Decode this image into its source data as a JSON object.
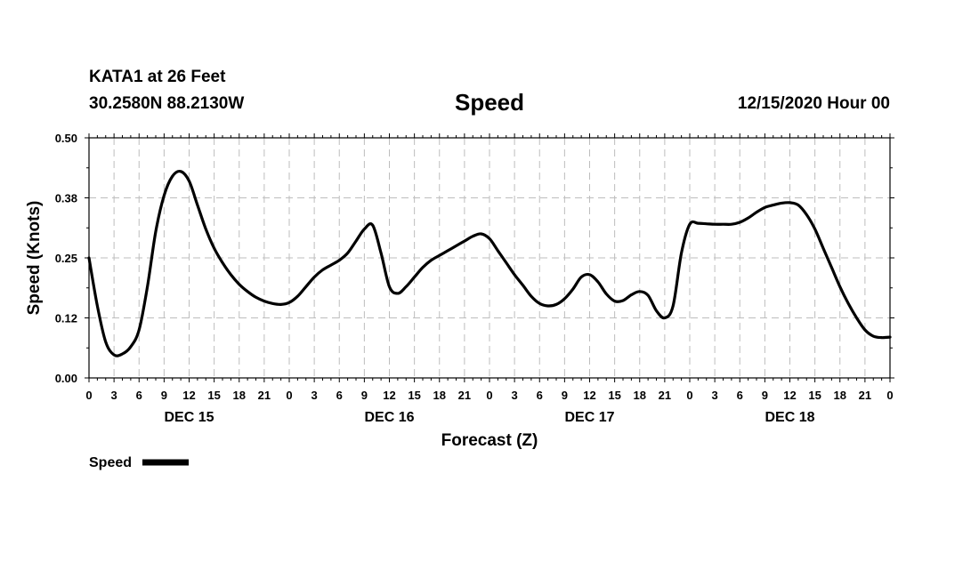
{
  "header": {
    "station": "KATA1 at 26 Feet",
    "coords": "30.2580N 88.2130W",
    "title": "Speed",
    "run_time": "12/15/2020 Hour 00"
  },
  "chart_data": {
    "type": "line",
    "title": "Speed",
    "xlabel": "Forecast (Z)",
    "ylabel": "Speed (Knots)",
    "ylim": [
      0,
      0.5
    ],
    "yticks": [
      "0.00",
      "0.12",
      "0.25",
      "0.38",
      "0.50"
    ],
    "xlim_hours": [
      0,
      96
    ],
    "xtick_labels": [
      "0",
      "3",
      "6",
      "9",
      "12",
      "15",
      "18",
      "21",
      "0",
      "3",
      "6",
      "9",
      "12",
      "15",
      "18",
      "21",
      "0",
      "3",
      "6",
      "9",
      "12",
      "15",
      "18",
      "21",
      "0",
      "3",
      "6",
      "9",
      "12",
      "15",
      "18",
      "21",
      "0"
    ],
    "day_labels": [
      "DEC 15",
      "DEC 16",
      "DEC 17",
      "DEC 18"
    ],
    "grid": true,
    "legend_position": "bottom-left",
    "series": [
      {
        "name": "Speed",
        "color": "#000000",
        "x": [
          0,
          1,
          2,
          3,
          4,
          5,
          6,
          7,
          8,
          9,
          10,
          11,
          12,
          13,
          14,
          15,
          16,
          17,
          18,
          19,
          20,
          21,
          22,
          23,
          24,
          25,
          26,
          27,
          28,
          29,
          30,
          31,
          32,
          33,
          34,
          35,
          36,
          37,
          38,
          39,
          40,
          41,
          42,
          43,
          44,
          45,
          46,
          47,
          48,
          49,
          50,
          51,
          52,
          53,
          54,
          55,
          56,
          57,
          58,
          59,
          60,
          61,
          62,
          63,
          64,
          65,
          66,
          67,
          68,
          69,
          70,
          71,
          72,
          73,
          74,
          75,
          76,
          77,
          78,
          79,
          80,
          81,
          82,
          83,
          84,
          85,
          86,
          87,
          88,
          89,
          90,
          91,
          92,
          93,
          94,
          95,
          96
        ],
        "values": [
          0.25,
          0.15,
          0.075,
          0.048,
          0.05,
          0.065,
          0.1,
          0.19,
          0.305,
          0.38,
          0.42,
          0.43,
          0.41,
          0.36,
          0.31,
          0.27,
          0.24,
          0.215,
          0.195,
          0.18,
          0.168,
          0.16,
          0.155,
          0.153,
          0.157,
          0.17,
          0.19,
          0.21,
          0.225,
          0.235,
          0.245,
          0.26,
          0.285,
          0.31,
          0.318,
          0.26,
          0.19,
          0.176,
          0.19,
          0.21,
          0.23,
          0.245,
          0.255,
          0.265,
          0.275,
          0.285,
          0.295,
          0.3,
          0.29,
          0.265,
          0.24,
          0.215,
          0.193,
          0.17,
          0.155,
          0.15,
          0.153,
          0.165,
          0.185,
          0.21,
          0.215,
          0.2,
          0.175,
          0.16,
          0.161,
          0.173,
          0.18,
          0.172,
          0.14,
          0.125,
          0.15,
          0.26,
          0.32,
          0.322,
          0.321,
          0.32,
          0.32,
          0.32,
          0.324,
          0.333,
          0.345,
          0.355,
          0.36,
          0.364,
          0.365,
          0.36,
          0.34,
          0.31,
          0.27,
          0.23,
          0.19,
          0.155,
          0.125,
          0.1,
          0.087,
          0.084,
          0.085
        ]
      }
    ]
  }
}
